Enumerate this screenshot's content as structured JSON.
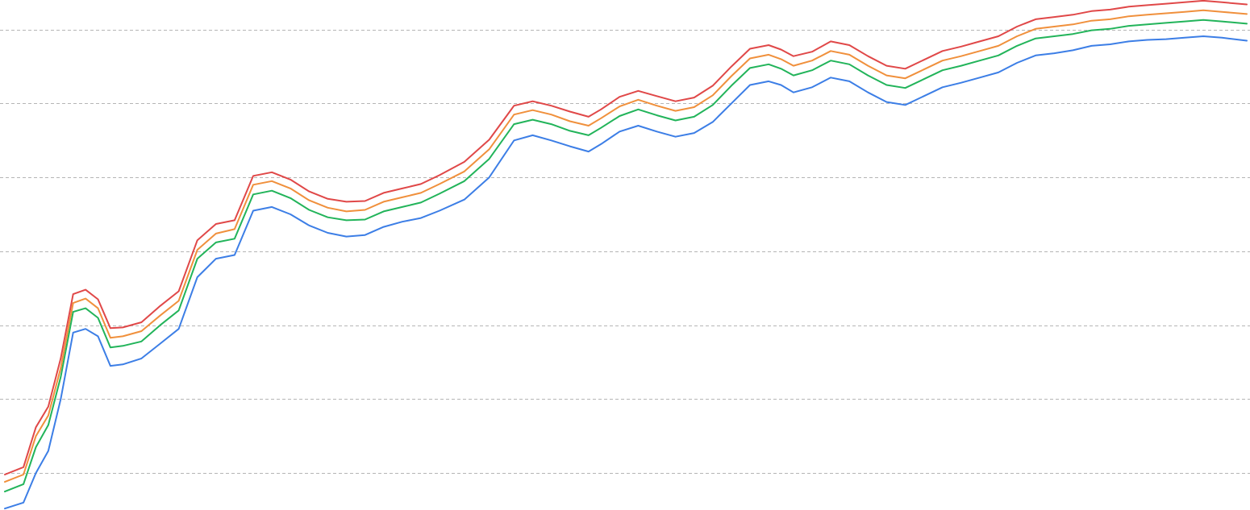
{
  "chart_data": {
    "type": "line",
    "title": "",
    "xlabel": "",
    "ylabel": "",
    "legend": "none",
    "grid": true,
    "grid_style": "dashed-horizontal",
    "xlim": [
      0,
      100
    ],
    "ylim": [
      0,
      6.9
    ],
    "gridlines_y": [
      0.5,
      1.5,
      2.5,
      3.5,
      4.5,
      5.5,
      6.5
    ],
    "x": [
      0,
      1.5,
      2.5,
      3.5,
      4.5,
      5.5,
      6.5,
      7.5,
      8.5,
      9.5,
      11,
      12.5,
      14,
      15.5,
      17,
      18.5,
      20,
      21.5,
      23,
      24.5,
      26,
      27.5,
      29,
      30.5,
      32,
      33.5,
      35,
      37,
      39,
      41,
      42.5,
      44,
      45.5,
      47,
      48,
      49.5,
      51,
      52.5,
      54,
      55.5,
      57,
      58.5,
      60,
      61.5,
      62.5,
      63.5,
      65,
      66.5,
      68,
      69.5,
      71,
      72.5,
      74,
      75.5,
      77,
      78.5,
      80,
      81.5,
      83,
      84.5,
      86,
      87.5,
      89,
      90.5,
      92,
      93.5,
      95,
      96.5,
      98,
      100
    ],
    "series": [
      {
        "color": "#3c7ee6",
        "values": [
          0.02,
          0.1,
          0.5,
          0.8,
          1.5,
          2.4,
          2.45,
          2.35,
          1.95,
          1.97,
          2.05,
          2.25,
          2.45,
          3.15,
          3.4,
          3.45,
          4.05,
          4.1,
          4.0,
          3.85,
          3.75,
          3.7,
          3.72,
          3.83,
          3.9,
          3.95,
          4.05,
          4.2,
          4.5,
          5.0,
          5.07,
          5.0,
          4.92,
          4.85,
          4.95,
          5.12,
          5.2,
          5.12,
          5.05,
          5.1,
          5.25,
          5.5,
          5.75,
          5.8,
          5.75,
          5.65,
          5.72,
          5.85,
          5.8,
          5.65,
          5.52,
          5.48,
          5.6,
          5.72,
          5.78,
          5.85,
          5.92,
          6.05,
          6.15,
          6.18,
          6.22,
          6.28,
          6.3,
          6.34,
          6.36,
          6.37,
          6.39,
          6.41,
          6.39,
          6.35
        ]
      },
      {
        "color": "#22b45a",
        "values": [
          0.25,
          0.35,
          0.85,
          1.15,
          1.8,
          2.68,
          2.73,
          2.6,
          2.2,
          2.22,
          2.28,
          2.5,
          2.7,
          3.4,
          3.62,
          3.67,
          4.27,
          4.32,
          4.22,
          4.06,
          3.96,
          3.92,
          3.93,
          4.04,
          4.1,
          4.16,
          4.28,
          4.45,
          4.75,
          5.22,
          5.28,
          5.22,
          5.13,
          5.07,
          5.17,
          5.33,
          5.42,
          5.34,
          5.27,
          5.32,
          5.48,
          5.74,
          5.98,
          6.03,
          5.97,
          5.88,
          5.95,
          6.08,
          6.03,
          5.88,
          5.75,
          5.71,
          5.83,
          5.95,
          6.01,
          6.08,
          6.15,
          6.28,
          6.38,
          6.41,
          6.44,
          6.49,
          6.51,
          6.55,
          6.57,
          6.59,
          6.61,
          6.63,
          6.61,
          6.58
        ]
      },
      {
        "color": "#f0903c",
        "values": [
          0.38,
          0.48,
          1.0,
          1.28,
          1.92,
          2.8,
          2.86,
          2.73,
          2.33,
          2.35,
          2.42,
          2.63,
          2.83,
          3.52,
          3.74,
          3.8,
          4.4,
          4.45,
          4.35,
          4.19,
          4.09,
          4.04,
          4.06,
          4.17,
          4.23,
          4.29,
          4.41,
          4.58,
          4.88,
          5.35,
          5.41,
          5.35,
          5.26,
          5.2,
          5.3,
          5.46,
          5.55,
          5.47,
          5.4,
          5.45,
          5.61,
          5.87,
          6.11,
          6.16,
          6.1,
          6.01,
          6.08,
          6.21,
          6.16,
          6.01,
          5.88,
          5.84,
          5.96,
          6.08,
          6.14,
          6.21,
          6.28,
          6.41,
          6.51,
          6.54,
          6.57,
          6.62,
          6.64,
          6.68,
          6.7,
          6.72,
          6.74,
          6.76,
          6.74,
          6.71
        ]
      },
      {
        "color": "#e04848",
        "values": [
          0.48,
          0.58,
          1.12,
          1.4,
          2.05,
          2.92,
          2.98,
          2.85,
          2.46,
          2.47,
          2.54,
          2.76,
          2.96,
          3.65,
          3.87,
          3.92,
          4.52,
          4.57,
          4.47,
          4.31,
          4.21,
          4.17,
          4.18,
          4.29,
          4.35,
          4.41,
          4.53,
          4.71,
          5.01,
          5.47,
          5.53,
          5.47,
          5.39,
          5.32,
          5.42,
          5.59,
          5.67,
          5.6,
          5.53,
          5.58,
          5.74,
          6.0,
          6.24,
          6.29,
          6.23,
          6.14,
          6.2,
          6.34,
          6.29,
          6.14,
          6.01,
          5.97,
          6.09,
          6.21,
          6.27,
          6.34,
          6.41,
          6.54,
          6.64,
          6.67,
          6.7,
          6.75,
          6.77,
          6.81,
          6.83,
          6.85,
          6.87,
          6.89,
          6.87,
          6.84
        ]
      }
    ]
  }
}
